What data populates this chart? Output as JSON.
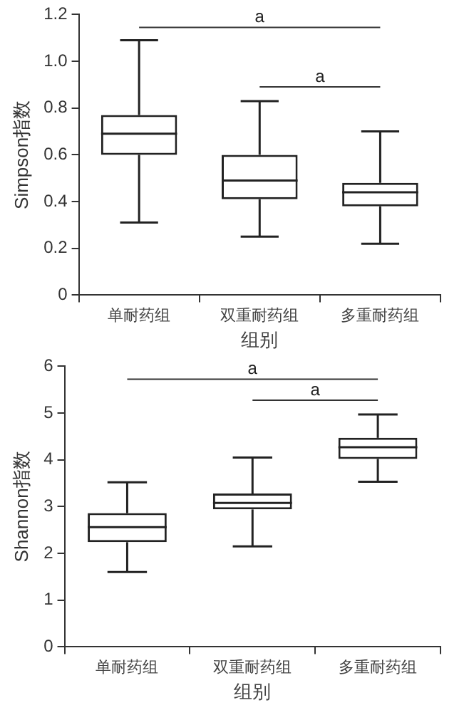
{
  "chart_data": [
    {
      "type": "box",
      "categories": [
        "单耐药组",
        "双重耐药组",
        "多重耐药组"
      ],
      "xlabel": "组别",
      "ylabel": "Simpson指数",
      "boxes": [
        {
          "low": 0.31,
          "q1": 0.6,
          "median": 0.69,
          "q3": 0.77,
          "high": 1.09
        },
        {
          "low": 0.25,
          "q1": 0.41,
          "median": 0.49,
          "q3": 0.6,
          "high": 0.83
        },
        {
          "low": 0.22,
          "q1": 0.38,
          "median": 0.44,
          "q3": 0.48,
          "high": 0.7
        }
      ],
      "ylim": [
        0,
        1.2
      ],
      "yticks": [
        0,
        0.2,
        0.4,
        0.6,
        0.8,
        {
          "value": 1,
          "label": "1.0"
        },
        1.2
      ],
      "annotations": [
        "a",
        "a"
      ]
    },
    {
      "type": "box",
      "categories": [
        "单耐药组",
        "双重耐药组",
        "多重耐药组"
      ],
      "xlabel": "组别",
      "ylabel": "Shannon指数",
      "boxes": [
        {
          "low": 1.6,
          "q1": 2.24,
          "median": 2.56,
          "q3": 2.86,
          "high": 3.52
        },
        {
          "low": 2.15,
          "q1": 2.94,
          "median": 3.08,
          "q3": 3.28,
          "high": 4.05
        },
        {
          "low": 3.53,
          "q1": 4.02,
          "median": 4.27,
          "q3": 4.47,
          "high": 4.97
        }
      ],
      "ylim": [
        0,
        6
      ],
      "yticks": [
        0,
        1,
        2,
        3,
        4,
        5,
        6
      ],
      "annotations": [
        "a",
        "a"
      ]
    }
  ]
}
